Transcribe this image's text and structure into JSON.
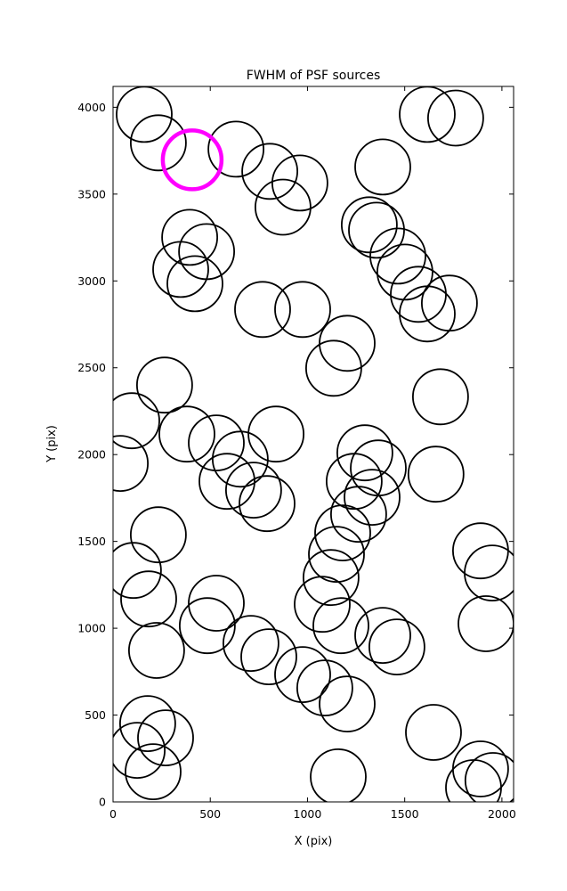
{
  "title": "FWHM of PSF sources",
  "chart_data": {
    "type": "scatter",
    "title": "FWHM of PSF sources",
    "xlabel": "X (pix)",
    "ylabel": "Y (pix)",
    "xlim": [
      0,
      2060
    ],
    "ylim": [
      0,
      4120
    ],
    "x_ticks": [
      0,
      500,
      1000,
      1500,
      2000
    ],
    "y_ticks": [
      0,
      500,
      1000,
      1500,
      2000,
      2500,
      3000,
      3500,
      4000
    ],
    "grid": false,
    "legend": "none",
    "marker_style": "open-circle",
    "marker_color": "#000000",
    "marker_radius_px": 31,
    "highlight_color": "#ff00ff",
    "highlight_radius_px": 33,
    "highlight_point": {
      "x": 407,
      "y": 3697
    },
    "points": [
      [
        160,
        3959
      ],
      [
        233,
        3795
      ],
      [
        632,
        3759
      ],
      [
        1616,
        3959
      ],
      [
        1762,
        3938
      ],
      [
        1387,
        3656
      ],
      [
        806,
        3631
      ],
      [
        961,
        3564
      ],
      [
        874,
        3425
      ],
      [
        1318,
        3323
      ],
      [
        1355,
        3292
      ],
      [
        1465,
        3143
      ],
      [
        394,
        3251
      ],
      [
        481,
        3169
      ],
      [
        348,
        3066
      ],
      [
        421,
        2984
      ],
      [
        1501,
        3051
      ],
      [
        1570,
        2923
      ],
      [
        1730,
        2872
      ],
      [
        1616,
        2810
      ],
      [
        769,
        2836
      ],
      [
        975,
        2836
      ],
      [
        1204,
        2641
      ],
      [
        1135,
        2497
      ],
      [
        1684,
        2333
      ],
      [
        265,
        2400
      ],
      [
        96,
        2195
      ],
      [
        380,
        2118
      ],
      [
        531,
        2067
      ],
      [
        37,
        1949
      ],
      [
        838,
        2118
      ],
      [
        654,
        1974
      ],
      [
        586,
        1846
      ],
      [
        723,
        1795
      ],
      [
        792,
        1718
      ],
      [
        1295,
        2010
      ],
      [
        1364,
        1923
      ],
      [
        1240,
        1846
      ],
      [
        1332,
        1754
      ],
      [
        1263,
        1656
      ],
      [
        1661,
        1887
      ],
      [
        1181,
        1549
      ],
      [
        1149,
        1426
      ],
      [
        1121,
        1292
      ],
      [
        1076,
        1138
      ],
      [
        1172,
        1015
      ],
      [
        233,
        1538
      ],
      [
        105,
        1333
      ],
      [
        183,
        1169
      ],
      [
        531,
        1144
      ],
      [
        485,
        1015
      ],
      [
        224,
        872
      ],
      [
        709,
        913
      ],
      [
        801,
        836
      ],
      [
        1890,
        1446
      ],
      [
        1950,
        1318
      ],
      [
        1918,
        1026
      ],
      [
        975,
        733
      ],
      [
        1089,
        656
      ],
      [
        1387,
        959
      ],
      [
        1460,
        892
      ],
      [
        1204,
        564
      ],
      [
        1648,
        400
      ],
      [
        178,
        451
      ],
      [
        270,
        369
      ],
      [
        124,
        297
      ],
      [
        206,
        174
      ],
      [
        1158,
        144
      ],
      [
        1890,
        190
      ],
      [
        1954,
        123
      ],
      [
        1854,
        82
      ]
    ]
  },
  "layout_note": ""
}
